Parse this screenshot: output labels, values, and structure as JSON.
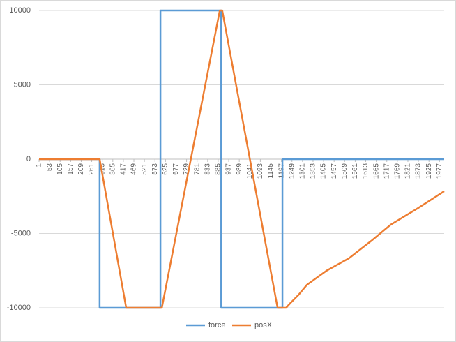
{
  "chart_data": {
    "type": "line",
    "series": [
      {
        "name": "force",
        "color": "#5b9bd5",
        "x": [
          1,
          300,
          300,
          600,
          600,
          900,
          900,
          1202,
          1202,
          2000
        ],
        "values": [
          0,
          0,
          -10000,
          -10000,
          10000,
          10000,
          -10000,
          -10000,
          0,
          0
        ]
      },
      {
        "name": "posX",
        "color": "#ed7d31",
        "x": [
          1,
          300,
          431,
          607,
          893,
          905,
          1178,
          1220,
          1240,
          1280,
          1323,
          1420,
          1530,
          1640,
          1736,
          1870,
          2000
        ],
        "values": [
          0,
          0,
          -10000,
          -10000,
          10000,
          10000,
          -10000,
          -10000,
          -9700,
          -9150,
          -8450,
          -7500,
          -6670,
          -5500,
          -4410,
          -3300,
          -2160
        ]
      }
    ],
    "xlim": [
      1,
      2000
    ],
    "xticks": [
      1,
      53,
      105,
      157,
      209,
      261,
      313,
      365,
      417,
      469,
      521,
      573,
      625,
      677,
      729,
      781,
      833,
      885,
      937,
      989,
      1041,
      1093,
      1145,
      1197,
      1249,
      1301,
      1353,
      1405,
      1457,
      1509,
      1561,
      1613,
      1665,
      1717,
      1769,
      1821,
      1873,
      1925,
      1977
    ],
    "ylim": [
      -10000,
      10000
    ],
    "yticks": [
      -10000,
      -5000,
      0,
      5000,
      10000
    ],
    "grid": true
  }
}
